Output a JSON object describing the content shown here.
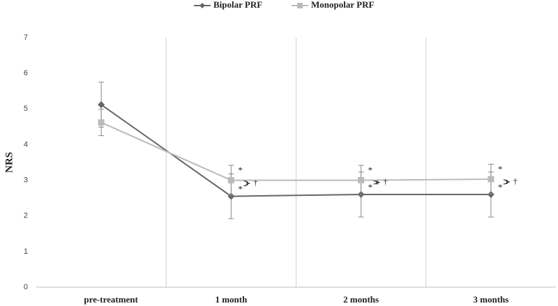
{
  "chart_data": {
    "type": "line",
    "y_label": "NRS",
    "categories": [
      "pre-treatment",
      "1 month",
      "2 months",
      "3 months"
    ],
    "series": [
      {
        "name": "Bipolar PRF",
        "color": "#666666",
        "marker": "diamond",
        "values": [
          5.12,
          2.55,
          2.6,
          2.6
        ],
        "errors": [
          0.63,
          0.63,
          0.63,
          0.63
        ],
        "markers": [
          null,
          "*",
          "*",
          "*"
        ]
      },
      {
        "name": "Monopolar PRF",
        "color": "#bbbbbb",
        "marker": "square",
        "values": [
          4.62,
          3.0,
          3.0,
          3.03
        ],
        "errors": [
          0.37,
          0.42,
          0.42,
          0.42
        ],
        "markers": [
          null,
          "*",
          "*",
          "*"
        ]
      }
    ],
    "group_markers": [
      null,
      "†",
      "†",
      "†"
    ],
    "ylim": [
      0,
      7
    ],
    "yticks": [
      0,
      1,
      2,
      3,
      4,
      5,
      6,
      7
    ],
    "legend": "top"
  }
}
